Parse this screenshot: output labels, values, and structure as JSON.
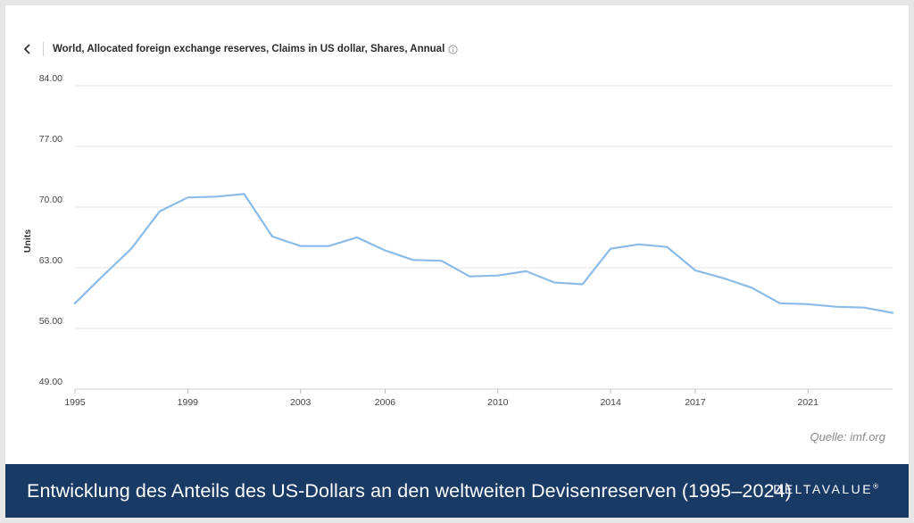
{
  "header": {
    "title": "World, Allocated foreign exchange reserves, Claims in US dollar, Shares, Annual",
    "back_icon": "chevron-left-icon",
    "info_icon": "info-circle-icon"
  },
  "chart_data": {
    "type": "line",
    "title": "World, Allocated foreign exchange reserves, Claims in US dollar, Shares, Annual",
    "ylabel": "Units",
    "xlabel": "",
    "ylim": [
      49,
      84
    ],
    "xlim": [
      1995,
      2024
    ],
    "y_ticks": [
      "49.00",
      "56.00",
      "63.00",
      "70.00",
      "77.00",
      "84.00"
    ],
    "x_ticks": [
      "1995",
      "1999",
      "2003",
      "2006",
      "2010",
      "2014",
      "2017",
      "2021"
    ],
    "grid": true,
    "color": "#8bbbe8",
    "series": [
      {
        "x": [
          1995,
          1996,
          1997,
          1998,
          1999,
          2000,
          2001,
          2002,
          2003,
          2004,
          2005,
          2006,
          2007,
          2008,
          2009,
          2010,
          2011,
          2012,
          2013,
          2014,
          2015,
          2016,
          2017,
          2018,
          2019,
          2020,
          2021,
          2022,
          2023,
          2024
        ],
        "values": [
          58.9,
          62.1,
          65.2,
          69.5,
          71.1,
          71.2,
          71.5,
          66.6,
          65.5,
          65.5,
          66.5,
          65.0,
          63.9,
          63.8,
          62.0,
          62.1,
          62.6,
          61.3,
          61.1,
          65.2,
          65.7,
          65.4,
          62.7,
          61.8,
          60.7,
          58.9,
          58.8,
          58.5,
          58.4,
          57.8
        ]
      }
    ]
  },
  "source": "Quelle: imf.org",
  "footer": {
    "title": "Entwicklung des Anteils des US-Dollars an den weltweiten Devisenreserven (1995–2024)",
    "brand": "DELTAVALUE",
    "brand_mark": "®"
  }
}
